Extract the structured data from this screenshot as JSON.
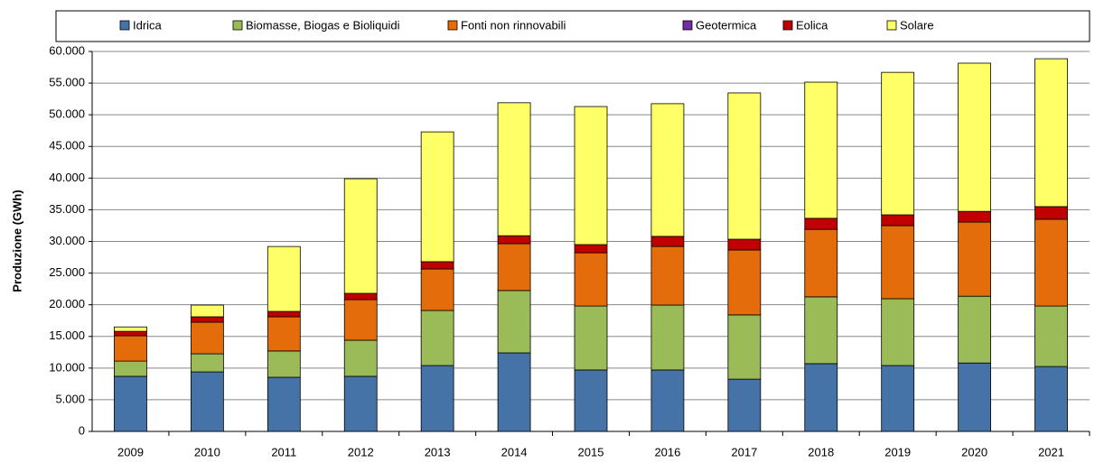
{
  "chart_data": {
    "type": "bar",
    "stacked": true,
    "y_label": "Produzione (GWh)",
    "categories": [
      "2009",
      "2010",
      "2011",
      "2012",
      "2013",
      "2014",
      "2015",
      "2016",
      "2017",
      "2018",
      "2019",
      "2020",
      "2021"
    ],
    "series": [
      {
        "name": "Idrica",
        "color": "#4572a7",
        "values": [
          8700,
          9400,
          8550,
          8700,
          10400,
          12400,
          9700,
          9700,
          8250,
          10700,
          10400,
          10800,
          10250
        ]
      },
      {
        "name": "Biomasse, Biogas e Bioliquidi",
        "color": "#9bbb59",
        "values": [
          2400,
          2850,
          4150,
          5700,
          8700,
          9850,
          10100,
          10250,
          10150,
          10550,
          10550,
          10550,
          9550
        ]
      },
      {
        "name": "Fonti non rinnovabili",
        "color": "#e46c0a",
        "values": [
          4000,
          5000,
          5400,
          6400,
          6550,
          7400,
          8400,
          9250,
          10250,
          10650,
          11550,
          11700,
          13700
        ]
      },
      {
        "name": "Geotermica",
        "color": "#7030a0",
        "values": [
          0,
          0,
          0,
          0,
          0,
          0,
          0,
          0,
          0,
          0,
          0,
          0,
          0
        ]
      },
      {
        "name": "Eolica",
        "color": "#c00000",
        "values": [
          700,
          850,
          850,
          1000,
          1150,
          1250,
          1300,
          1600,
          1700,
          1750,
          1700,
          1700,
          2000
        ]
      },
      {
        "name": "Solare",
        "color": "#ffff66",
        "values": [
          700,
          1850,
          10250,
          18100,
          20500,
          21000,
          21800,
          20950,
          23100,
          21500,
          22500,
          23400,
          23350
        ]
      }
    ],
    "ylim": [
      0,
      60000
    ],
    "yticks": [
      0,
      {
        "value": 5000,
        "label": "5.000"
      },
      {
        "value": 10000,
        "label": "10.000"
      },
      {
        "value": 15000,
        "label": "15.000"
      },
      {
        "value": 20000,
        "label": "20.000"
      },
      {
        "value": 25000,
        "label": "25.000"
      },
      {
        "value": 30000,
        "label": "30.000"
      },
      {
        "value": 35000,
        "label": "35.000"
      },
      {
        "value": 40000,
        "label": "40.000"
      },
      {
        "value": 45000,
        "label": "45.000"
      },
      {
        "value": 50000,
        "label": "50.000"
      },
      {
        "value": 55000,
        "label": "55.000"
      },
      {
        "value": 60000,
        "label": "60.000"
      }
    ],
    "grid": true,
    "legend": "top"
  }
}
